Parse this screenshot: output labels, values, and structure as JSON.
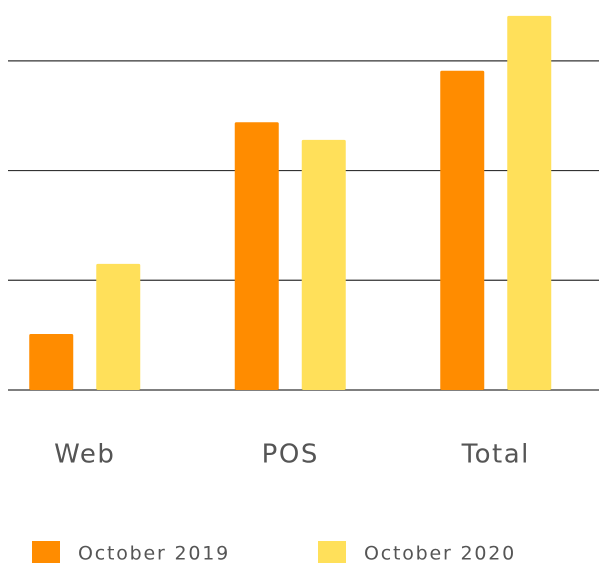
{
  "chart_data": {
    "type": "bar",
    "categories": [
      "Web",
      "POS",
      "Total"
    ],
    "series": [
      {
        "name": "October 2019",
        "color": "#ff8c00",
        "values": [
          0.51,
          2.44,
          2.91
        ]
      },
      {
        "name": "October 2020",
        "color": "#ffe05a",
        "values": [
          1.15,
          2.28,
          3.41
        ]
      }
    ],
    "ylim": [
      0,
      3.55
    ],
    "yticks": [
      0,
      1,
      2,
      3
    ],
    "grid": true,
    "legend": "bottom"
  }
}
